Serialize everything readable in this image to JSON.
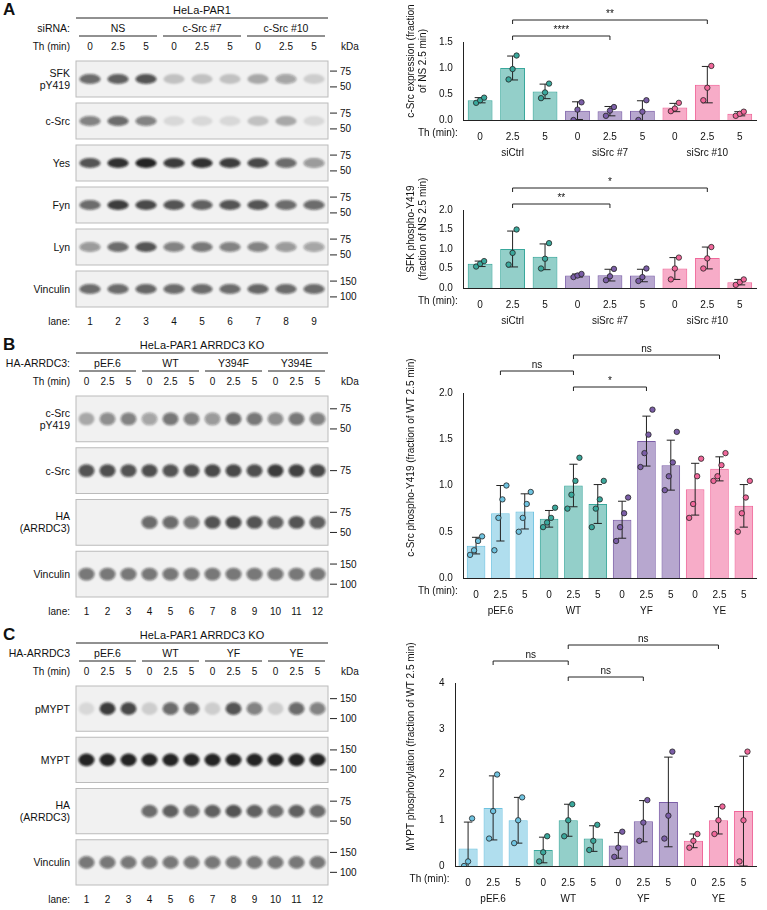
{
  "chart_data": [
    {
      "type": "bar",
      "y_label": "c-Src expression (fraction of NS 2.5 min)",
      "x_label": "Th (min):",
      "categories": [
        0,
        2.5,
        5
      ],
      "ylim": [
        0,
        1.5
      ],
      "yticks": [
        {
          "value": 0,
          "label": "0.0"
        },
        {
          "value": 0.5,
          "label": "0.5"
        },
        {
          "value": 1,
          "label": "1.0"
        },
        {
          "value": 1.5,
          "label": "1.5"
        }
      ],
      "grid": false,
      "series": [
        {
          "name": "siCtrl",
          "color": "#3aa89c",
          "values": [
            0.38,
            1.0,
            0.55
          ],
          "errors": [
            0.05,
            0.23,
            0.14
          ],
          "points": [
            [
              0.33,
              0.38,
              0.43
            ],
            [
              0.78,
              0.98,
              1.24
            ],
            [
              0.42,
              0.53,
              0.7
            ]
          ]
        },
        {
          "name": "siSrc #7",
          "color": "#7b5ea7",
          "values": [
            0.18,
            0.17,
            0.18
          ],
          "errors": [
            0.17,
            0.09,
            0.19
          ],
          "points": [
            [
              0.0,
              0.2,
              0.34
            ],
            [
              0.08,
              0.18,
              0.25
            ],
            [
              0.0,
              0.16,
              0.38
            ]
          ]
        },
        {
          "name": "siSrc #10",
          "color": "#f0679a",
          "values": [
            0.24,
            0.68,
            0.12
          ],
          "errors": [
            0.08,
            0.35,
            0.04
          ],
          "points": [
            [
              0.17,
              0.22,
              0.33
            ],
            [
              0.38,
              0.62,
              1.04
            ],
            [
              0.08,
              0.12,
              0.16
            ]
          ]
        }
      ],
      "significance": [
        {
          "from": "siCtrl",
          "to": "siSrc #7",
          "label": "****"
        },
        {
          "from": "siCtrl",
          "to": "siSrc #10",
          "label": "**"
        }
      ]
    },
    {
      "type": "bar",
      "y_label": "SFK phospho-Y419 (fraction of NS 2.5 min)",
      "x_label": "Th (min):",
      "categories": [
        0,
        2.5,
        5
      ],
      "ylim": [
        0,
        2
      ],
      "yticks": [
        {
          "value": 0,
          "label": "0.0"
        },
        {
          "value": 0.5,
          "label": "0.5"
        },
        {
          "value": 1,
          "label": "1.0"
        },
        {
          "value": 1.5,
          "label": "1.5"
        },
        {
          "value": 2,
          "label": "2.0"
        }
      ],
      "grid": false,
      "series": [
        {
          "name": "siCtrl",
          "color": "#3aa89c",
          "values": [
            0.62,
            1.0,
            0.8
          ],
          "errors": [
            0.07,
            0.46,
            0.33
          ],
          "points": [
            [
              0.55,
              0.62,
              0.69
            ],
            [
              0.6,
              0.9,
              1.5
            ],
            [
              0.5,
              0.75,
              1.15
            ]
          ]
        },
        {
          "name": "siSrc #7",
          "color": "#7b5ea7",
          "values": [
            0.32,
            0.33,
            0.32
          ],
          "errors": [
            0.04,
            0.15,
            0.16
          ],
          "points": [
            [
              0.28,
              0.32,
              0.36
            ],
            [
              0.2,
              0.3,
              0.49
            ],
            [
              0.18,
              0.28,
              0.5
            ]
          ]
        },
        {
          "name": "siSrc #10",
          "color": "#f0679a",
          "values": [
            0.5,
            0.77,
            0.15
          ],
          "errors": [
            0.28,
            0.28,
            0.07
          ],
          "points": [
            [
              0.22,
              0.5,
              0.78
            ],
            [
              0.5,
              0.76,
              1.05
            ],
            [
              0.08,
              0.15,
              0.22
            ]
          ]
        }
      ],
      "significance": [
        {
          "from": "siCtrl",
          "to": "siSrc #7",
          "label": "**"
        },
        {
          "from": "siCtrl",
          "to": "siSrc #10",
          "label": "*"
        }
      ]
    },
    {
      "type": "bar",
      "y_label": "c-Src phospho-Y419 (fraction of WT 2.5 min)",
      "x_label": "Th (min):",
      "categories": [
        0,
        2.5,
        5
      ],
      "ylim": [
        0,
        2
      ],
      "yticks": [
        {
          "value": 0,
          "label": "0.0"
        },
        {
          "value": 0.5,
          "label": "0.5"
        },
        {
          "value": 1,
          "label": "1.0"
        },
        {
          "value": 1.5,
          "label": "1.5"
        },
        {
          "value": 2,
          "label": "2.0"
        }
      ],
      "grid": false,
      "series": [
        {
          "name": "pEF.6",
          "color": "#6fc3e0",
          "values": [
            0.35,
            0.7,
            0.72
          ],
          "errors": [
            0.09,
            0.3,
            0.19
          ],
          "points": [
            [
              0.25,
              0.3,
              0.4,
              0.45
            ],
            [
              0.3,
              0.65,
              0.85,
              1.0
            ],
            [
              0.5,
              0.65,
              0.8,
              0.93
            ]
          ]
        },
        {
          "name": "WT",
          "color": "#3aa89c",
          "values": [
            0.64,
            1.0,
            0.8
          ],
          "errors": [
            0.09,
            0.23,
            0.21
          ],
          "points": [
            [
              0.55,
              0.6,
              0.65,
              0.76
            ],
            [
              0.75,
              0.9,
              1.05,
              1.3
            ],
            [
              0.55,
              0.75,
              0.85,
              1.05
            ]
          ]
        },
        {
          "name": "YF",
          "color": "#7b5ea7",
          "values": [
            0.63,
            1.48,
            1.22
          ],
          "errors": [
            0.2,
            0.27,
            0.27
          ],
          "points": [
            [
              0.4,
              0.55,
              0.7,
              0.87
            ],
            [
              1.2,
              1.35,
              1.55,
              1.82
            ],
            [
              0.95,
              1.1,
              1.25,
              1.58
            ]
          ]
        },
        {
          "name": "YE",
          "color": "#f0679a",
          "values": [
            0.96,
            1.18,
            0.78
          ],
          "errors": [
            0.28,
            0.13,
            0.23
          ],
          "points": [
            [
              0.65,
              0.8,
              1.1,
              1.29
            ],
            [
              1.05,
              1.1,
              1.22,
              1.35
            ],
            [
              0.5,
              0.7,
              0.87,
              1.05
            ]
          ]
        }
      ],
      "significance": [
        {
          "from": "WT",
          "to": "YF",
          "label": "*"
        },
        {
          "from": "pEF.6",
          "to": "WT",
          "label": "ns"
        },
        {
          "from": "WT",
          "to": "YE",
          "label": "ns"
        }
      ]
    },
    {
      "type": "bar",
      "y_label": "MYPT phosphorylation (fraction of WT 2.5 min)",
      "x_label": "Th (min):",
      "categories": [
        0,
        2.5,
        5
      ],
      "ylim": [
        0,
        4
      ],
      "yticks": [
        0,
        1,
        2,
        3,
        4
      ],
      "grid": false,
      "series": [
        {
          "name": "pEF.6",
          "color": "#6fc3e0",
          "values": [
            0.38,
            1.27,
            1.0
          ],
          "errors": [
            0.58,
            0.7,
            0.5
          ],
          "points": [
            [
              0.0,
              0.1,
              1.04
            ],
            [
              0.6,
              1.2,
              2.0
            ],
            [
              0.5,
              1.0,
              1.5
            ]
          ]
        },
        {
          "name": "WT",
          "color": "#3aa89c",
          "values": [
            0.35,
            1.0,
            0.6
          ],
          "errors": [
            0.28,
            0.35,
            0.28
          ],
          "points": [
            [
              0.1,
              0.3,
              0.65
            ],
            [
              0.65,
              1.0,
              1.35
            ],
            [
              0.35,
              0.55,
              0.9
            ]
          ]
        },
        {
          "name": "YF",
          "color": "#7b5ea7",
          "values": [
            0.45,
            0.98,
            1.4
          ],
          "errors": [
            0.28,
            0.45,
            0.98
          ],
          "points": [
            [
              0.2,
              0.4,
              0.75
            ],
            [
              0.55,
              0.95,
              1.44
            ],
            [
              0.6,
              1.1,
              2.5
            ]
          ]
        },
        {
          "name": "YE",
          "color": "#f0679a",
          "values": [
            0.55,
            1.0,
            1.2
          ],
          "errors": [
            0.15,
            0.3,
            1.2
          ],
          "points": [
            [
              0.4,
              0.55,
              0.7
            ],
            [
              0.7,
              1.0,
              1.3
            ],
            [
              0.1,
              1.0,
              2.5
            ]
          ]
        }
      ],
      "significance": [
        {
          "from": "WT",
          "to": "YF",
          "label": "ns"
        },
        {
          "from": "pEF.6",
          "to": "WT",
          "label": "ns"
        },
        {
          "from": "WT",
          "to": "YE",
          "label": "ns"
        }
      ]
    }
  ],
  "blots": [
    {
      "letter": "A",
      "title": "HeLa-PAR1",
      "group_row": {
        "label": "siRNA:",
        "groups": [
          "NS",
          "c-Src #7",
          "c-Src #10"
        ]
      },
      "time_row": {
        "label": "Th (min)",
        "values": [
          0,
          2.5,
          5
        ]
      },
      "kda": "kDa",
      "rows": [
        {
          "label": [
            "SFK",
            "pY419"
          ],
          "markers": [
            75,
            50
          ],
          "bands": [
            0.6,
            0.65,
            0.7,
            0.2,
            0.2,
            0.2,
            0.3,
            0.35,
            0.15
          ]
        },
        {
          "label": [
            "c-Src"
          ],
          "markers": [
            75,
            50
          ],
          "bands": [
            0.5,
            0.6,
            0.5,
            0.1,
            0.1,
            0.1,
            0.2,
            0.3,
            0.1
          ]
        },
        {
          "label": [
            "Yes"
          ],
          "markers": [
            75,
            50
          ],
          "bands": [
            0.7,
            0.85,
            0.9,
            0.8,
            0.85,
            0.8,
            0.75,
            0.6,
            0.4
          ]
        },
        {
          "label": [
            "Fyn"
          ],
          "markers": [
            75,
            50
          ],
          "bands": [
            0.6,
            0.8,
            0.75,
            0.7,
            0.65,
            0.7,
            0.7,
            0.6,
            0.6
          ]
        },
        {
          "label": [
            "Lyn"
          ],
          "markers": [
            75,
            50
          ],
          "bands": [
            0.4,
            0.6,
            0.7,
            0.5,
            0.55,
            0.5,
            0.5,
            0.4,
            0.35
          ]
        },
        {
          "label": [
            "Vinculin"
          ],
          "markers": [
            150,
            100
          ],
          "bands": [
            0.6,
            0.6,
            0.62,
            0.6,
            0.6,
            0.6,
            0.62,
            0.6,
            0.6
          ]
        }
      ],
      "lane_label": "lane:",
      "lanes": [
        1,
        2,
        3,
        4,
        5,
        6,
        7,
        8,
        9
      ]
    },
    {
      "letter": "B",
      "title": "HeLa-PAR1 ARRDC3 KO",
      "group_row": {
        "label": "HA-ARRDC3:",
        "groups": [
          "pEF.6",
          "WT",
          "Y394F",
          "Y394E"
        ]
      },
      "time_row": {
        "label": "Th (min)",
        "values": [
          0,
          2.5,
          5
        ]
      },
      "kda": "kDa",
      "rows": [
        {
          "label": [
            "c-Src",
            "pY419"
          ],
          "markers": [
            75,
            50
          ],
          "bands": [
            0.3,
            0.45,
            0.5,
            0.35,
            0.55,
            0.5,
            0.4,
            0.6,
            0.55,
            0.45,
            0.55,
            0.5
          ]
        },
        {
          "label": [
            "c-Src"
          ],
          "markers": [
            75
          ],
          "bands": [
            0.7,
            0.72,
            0.7,
            0.72,
            0.7,
            0.72,
            0.75,
            0.75,
            0.72,
            0.8,
            0.78,
            0.75
          ]
        },
        {
          "label": [
            "HA",
            "(ARRDC3)"
          ],
          "markers": [
            75,
            50
          ],
          "bands": [
            0,
            0,
            0,
            0.6,
            0.6,
            0.55,
            0.7,
            0.75,
            0.7,
            0.65,
            0.7,
            0.65
          ]
        },
        {
          "label": [
            "Vinculin"
          ],
          "markers": [
            150,
            100
          ],
          "bands": [
            0.55,
            0.55,
            0.55,
            0.55,
            0.55,
            0.55,
            0.55,
            0.55,
            0.55,
            0.55,
            0.55,
            0.55
          ]
        }
      ],
      "lane_label": "lane:",
      "lanes": [
        1,
        2,
        3,
        4,
        5,
        6,
        7,
        8,
        9,
        10,
        11,
        12
      ]
    },
    {
      "letter": "C",
      "title": "HeLa-PAR1 ARRDC3 KO",
      "group_row": {
        "label": "HA-ARRDC3",
        "groups": [
          "pEF.6",
          "WT",
          "YF",
          "YE"
        ]
      },
      "time_row": {
        "label": "Th (min)",
        "values": [
          0,
          2.5,
          5
        ]
      },
      "kda": "kDa",
      "rows": [
        {
          "label": [
            "pMYPT"
          ],
          "markers": [
            150,
            100
          ],
          "bands": [
            0.1,
            0.8,
            0.75,
            0.15,
            0.6,
            0.6,
            0.15,
            0.7,
            0.5,
            0.15,
            0.6,
            0.5
          ]
        },
        {
          "label": [
            "MYPT"
          ],
          "markers": [
            150,
            100
          ],
          "bands": [
            0.9,
            0.9,
            0.9,
            0.9,
            0.9,
            0.9,
            0.9,
            0.9,
            0.9,
            0.9,
            0.9,
            0.9
          ]
        },
        {
          "label": [
            "HA",
            "(ARRDC3)"
          ],
          "markers": [
            75,
            50
          ],
          "bands": [
            0,
            0,
            0,
            0.6,
            0.65,
            0.6,
            0.65,
            0.7,
            0.65,
            0.6,
            0.65,
            0.6
          ]
        },
        {
          "label": [
            "Vinculin"
          ],
          "markers": [
            150,
            100
          ],
          "bands": [
            0.55,
            0.55,
            0.55,
            0.55,
            0.55,
            0.55,
            0.55,
            0.55,
            0.55,
            0.55,
            0.55,
            0.55
          ]
        }
      ],
      "lane_label": "lane:",
      "lanes": [
        1,
        2,
        3,
        4,
        5,
        6,
        7,
        8,
        9,
        10,
        11,
        12
      ]
    }
  ]
}
